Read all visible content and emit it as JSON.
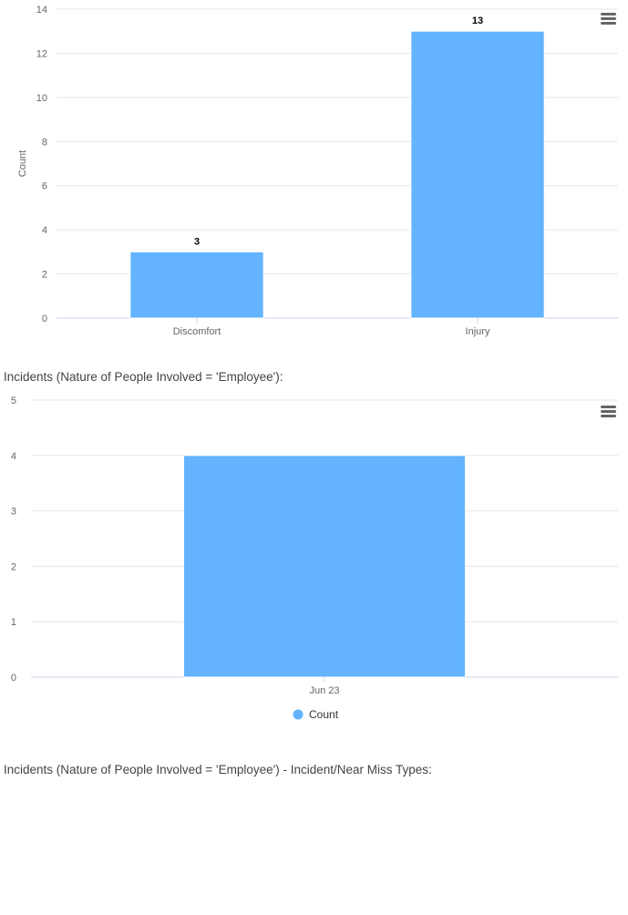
{
  "colors": {
    "bar": "#63b3fe",
    "grid": "#e6e6e6",
    "axis": "#ccd6eb",
    "menu": "#666666"
  },
  "icons": {
    "menu": "hamburger-menu-icon"
  },
  "chart_data": [
    {
      "type": "bar",
      "categories": [
        "Discomfort",
        "Injury"
      ],
      "series": [
        {
          "values": [
            3,
            13
          ]
        }
      ],
      "data_labels": [
        "3",
        "13"
      ],
      "ylabel": "Count",
      "ylim": [
        0,
        14
      ],
      "yticks": [
        "0",
        "2",
        "4",
        "6",
        "8",
        "10",
        "12",
        "14"
      ],
      "grid": true,
      "legend": "none"
    },
    {
      "type": "bar",
      "categories": [
        "Jun 23"
      ],
      "series": [
        {
          "name": "Count",
          "values": [
            4
          ]
        }
      ],
      "ylim": [
        0,
        5
      ],
      "yticks": [
        "0",
        "1",
        "2",
        "3",
        "4",
        "5"
      ],
      "grid": true,
      "legend": "bottom-center"
    }
  ],
  "sections": {
    "heading1": "Incidents (Nature of People Involved = 'Employee'):",
    "heading2": "Incidents (Nature of People Involved = 'Employee') - Incident/Near Miss Types:"
  }
}
